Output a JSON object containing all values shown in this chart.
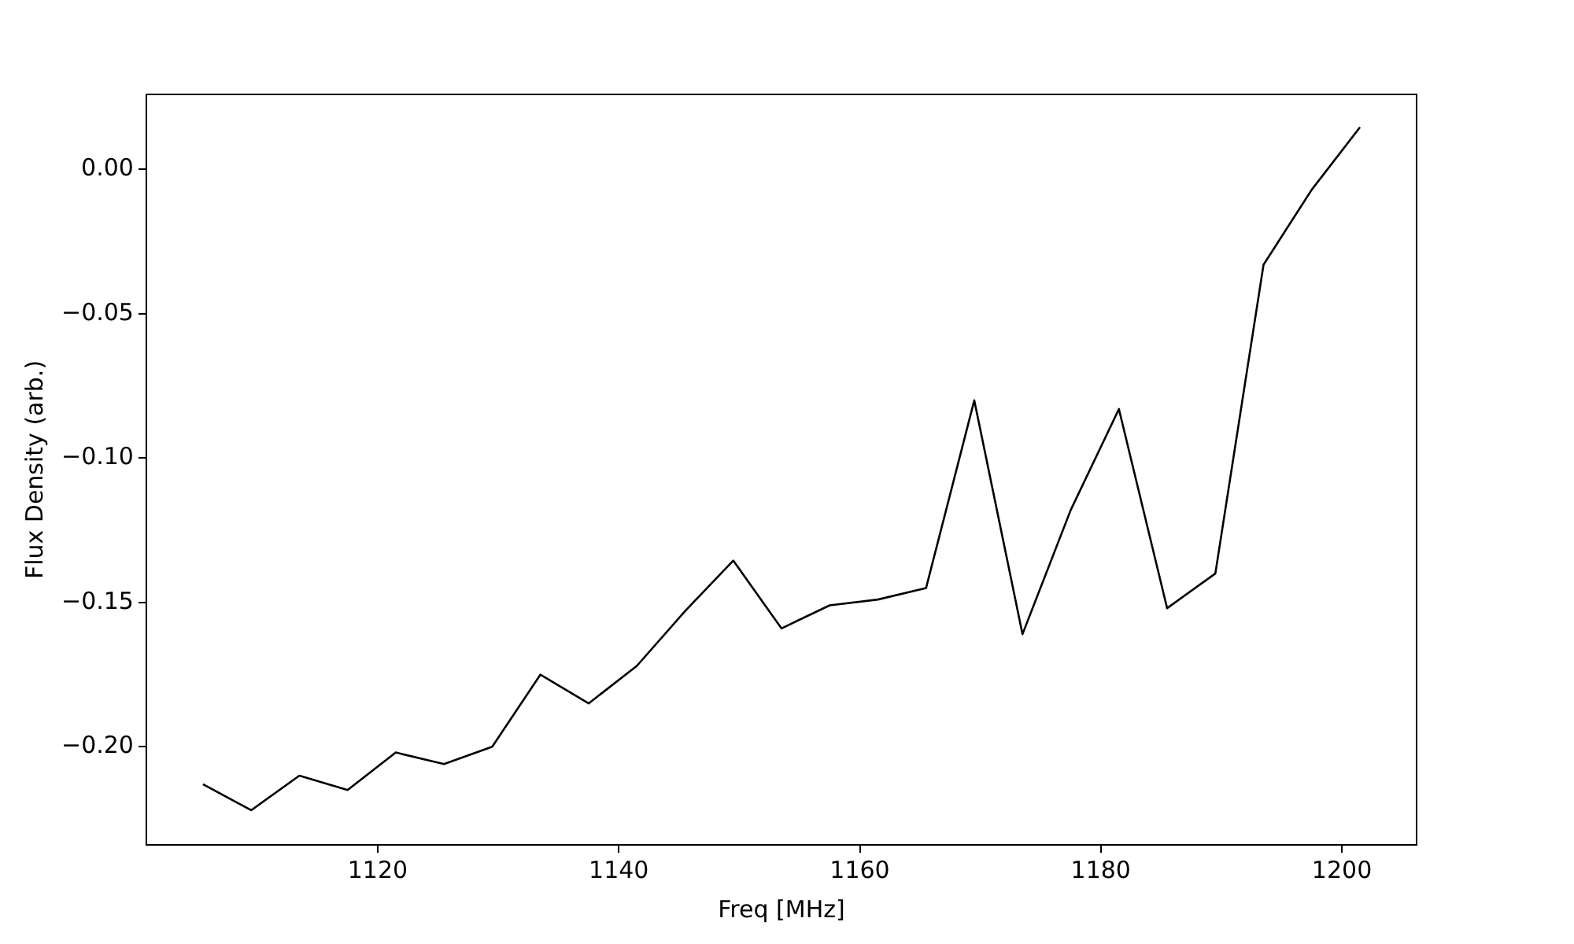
{
  "chart_data": {
    "type": "line",
    "xlabel": "Freq [MHz]",
    "ylabel": "Flux Density (arb.)",
    "x": [
      1105.5,
      1109.5,
      1113.5,
      1117.5,
      1121.5,
      1125.5,
      1129.5,
      1133.5,
      1137.5,
      1141.5,
      1145.5,
      1149.5,
      1153.5,
      1157.5,
      1161.5,
      1165.5,
      1169.5,
      1173.5,
      1177.5,
      1181.5,
      1185.5,
      1189.5,
      1193.5,
      1197.5,
      1201.5
    ],
    "series": [
      {
        "color": "#000000",
        "values": [
          -0.213,
          -0.222,
          -0.21,
          -0.215,
          -0.202,
          -0.206,
          -0.2,
          -0.175,
          -0.185,
          -0.172,
          -0.153,
          -0.1355,
          -0.159,
          -0.151,
          -0.149,
          -0.145,
          -0.08,
          -0.161,
          -0.118,
          -0.083,
          -0.152,
          -0.14,
          -0.033,
          -0.007,
          0.0146
        ]
      }
    ],
    "xlim": [
      1100.8,
      1206.2
    ],
    "ylim": [
      -0.234,
      0.026
    ],
    "xticks": [
      1120,
      1140,
      1160,
      1180,
      1200
    ],
    "yticks": [
      {
        "value": -0.2,
        "label": "−0.20"
      },
      {
        "value": -0.15,
        "label": "−0.15"
      },
      {
        "value": -0.1,
        "label": "−0.10"
      },
      {
        "value": -0.05,
        "label": "−0.05"
      },
      {
        "value": 0,
        "label": "0.00"
      }
    ],
    "grid": false,
    "legend": false,
    "marker": "none",
    "line_style": "solid"
  }
}
